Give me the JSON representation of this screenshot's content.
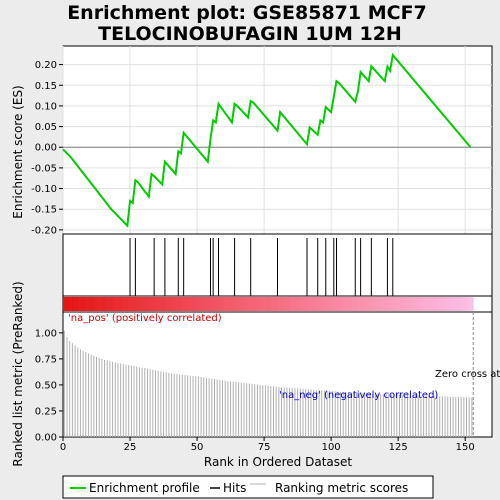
{
  "title_line1": "Enrichment plot: GSE85871 MCF7",
  "title_line2": "TELOCINOBUFAGIN 1UM 12H",
  "colors": {
    "es_line": "#00cc00",
    "hits": "#000000",
    "ranking": "#b0b0b0",
    "pos_label": "#cc0000",
    "neg_label": "#0000cc",
    "grad_red": "#e00000",
    "grad_pink": "#ffc0e8"
  },
  "labels": {
    "pos": "'na_pos' (positively correlated)",
    "neg": "'na_neg' (negatively correlated)",
    "zero_cross": "Zero cross at 153"
  },
  "chart_data": {
    "type": "line",
    "es_panel": {
      "ylabel": "Enrichment score (ES)",
      "ylim": [
        -0.21,
        0.245
      ],
      "y_ticks": [
        "0.20",
        "0.15",
        "0.10",
        "0.05",
        "0.00",
        "-0.05",
        "-0.10",
        "-0.15",
        "-0.20"
      ],
      "y_tick_values": [
        0.2,
        0.15,
        0.1,
        0.05,
        0.0,
        -0.05,
        -0.1,
        -0.15,
        -0.2
      ],
      "series": [
        {
          "name": "Enrichment profile",
          "x": [
            0,
            3,
            6,
            9,
            12,
            15,
            18,
            21,
            24,
            25,
            26,
            27,
            28,
            32,
            33,
            34,
            37,
            38,
            42,
            43,
            44,
            45,
            54,
            55,
            56,
            57,
            58,
            63,
            64,
            65,
            69,
            70,
            71,
            80,
            81,
            91,
            92,
            95,
            96,
            97,
            98,
            100,
            101,
            102,
            103,
            109,
            110,
            111,
            114,
            115,
            120,
            121,
            122,
            123,
            152
          ],
          "y": [
            -0.005,
            -0.025,
            -0.05,
            -0.075,
            -0.1,
            -0.125,
            -0.15,
            -0.17,
            -0.19,
            -0.13,
            -0.135,
            -0.08,
            -0.085,
            -0.12,
            -0.065,
            -0.07,
            -0.09,
            -0.035,
            -0.065,
            -0.01,
            -0.015,
            0.035,
            -0.035,
            0.02,
            0.065,
            0.06,
            0.105,
            0.06,
            0.105,
            0.1,
            0.072,
            0.112,
            0.108,
            0.04,
            0.085,
            0.007,
            0.048,
            0.03,
            0.065,
            0.06,
            0.097,
            0.085,
            0.122,
            0.16,
            0.155,
            0.11,
            0.135,
            0.182,
            0.16,
            0.196,
            0.16,
            0.195,
            0.185,
            0.223,
            0.0
          ]
        }
      ]
    },
    "hits": [
      25,
      27,
      34,
      38,
      43,
      45,
      55,
      56,
      58,
      64,
      70,
      80,
      91,
      95,
      98,
      101,
      102,
      109,
      111,
      115,
      121,
      123
    ],
    "ranking_panel": {
      "ylabel": "Ranked list metric (PreRanked)",
      "ylim": [
        0.0,
        1.2
      ],
      "y_ticks": [
        "1.00",
        "0.75",
        "0.50",
        "0.25",
        "0.00"
      ],
      "y_tick_values": [
        1.0,
        0.75,
        0.5,
        0.25,
        0.0
      ],
      "series": [
        {
          "name": "Ranking metric scores",
          "x": [
            0,
            1,
            2,
            4,
            6,
            10,
            15,
            20,
            30,
            40,
            50,
            60,
            70,
            80,
            90,
            100,
            110,
            120,
            130,
            140,
            152
          ],
          "y": [
            1.02,
            0.96,
            0.92,
            0.88,
            0.84,
            0.79,
            0.74,
            0.71,
            0.66,
            0.61,
            0.58,
            0.54,
            0.51,
            0.48,
            0.46,
            0.44,
            0.42,
            0.41,
            0.4,
            0.39,
            0.38
          ]
        }
      ]
    },
    "xlabel": "Rank in Ordered Dataset",
    "xlim": [
      0,
      160
    ],
    "x_ticks": [
      "0",
      "25",
      "50",
      "75",
      "100",
      "125",
      "150"
    ],
    "x_tick_values": [
      0,
      25,
      50,
      75,
      100,
      125,
      150
    ],
    "zero_cross": 153,
    "legend": {
      "placement": "bottom",
      "items": [
        "Enrichment profile",
        "Hits",
        "Ranking metric scores"
      ]
    }
  }
}
